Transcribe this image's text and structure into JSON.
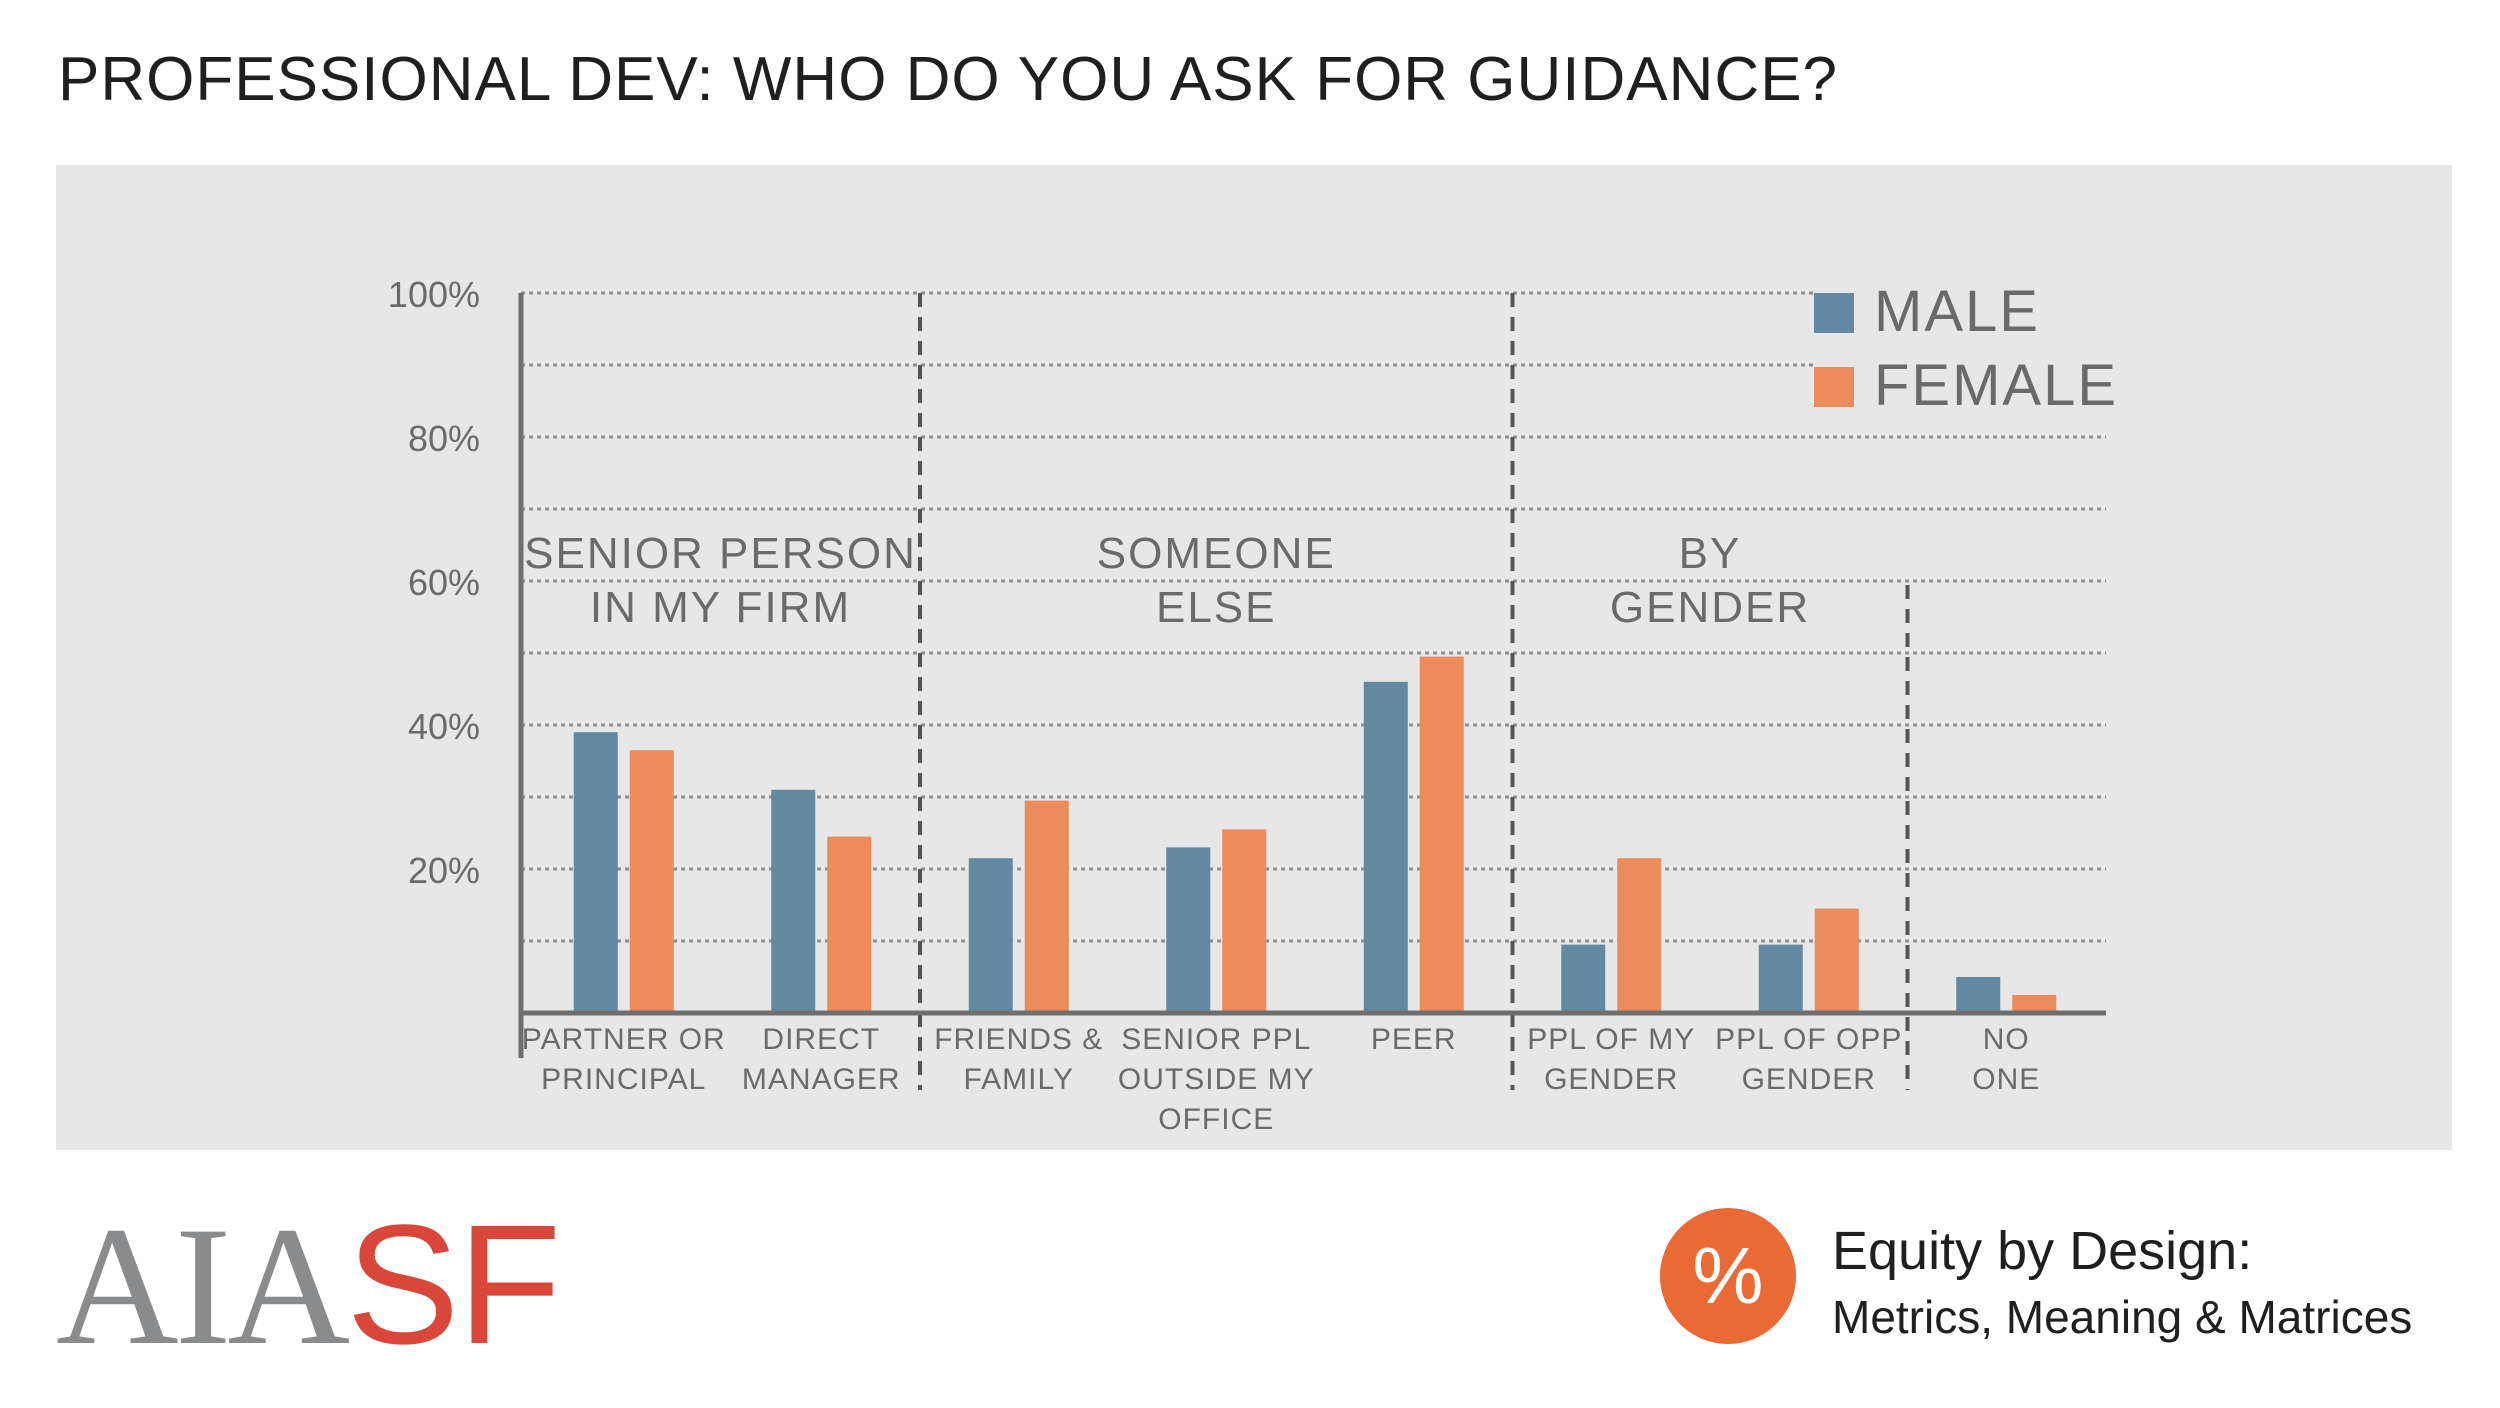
{
  "title": "PROFESSIONAL DEV: WHO DO YOU ASK FOR GUIDANCE?",
  "colors": {
    "male": "#6389a2",
    "female": "#ec8b5c",
    "panel": "#e6e7e6",
    "axis": "#6e6e6e",
    "text": "#6a6a6a"
  },
  "chart_data": {
    "type": "bar",
    "ylim": [
      0,
      100
    ],
    "y_ticks": [
      "100%",
      "80%",
      "60%",
      "40%",
      "20%"
    ],
    "y_tick_values": [
      100,
      80,
      60,
      40,
      20
    ],
    "grid": "dotted",
    "legend_position": "top-right",
    "categories": [
      [
        "PARTNER OR",
        "PRINCIPAL"
      ],
      [
        "DIRECT",
        "MANAGER"
      ],
      [
        "FRIENDS &",
        "FAMILY"
      ],
      [
        "SENIOR PPL",
        "OUTSIDE MY",
        "OFFICE"
      ],
      [
        "PEER"
      ],
      [
        "PPL OF MY",
        "GENDER"
      ],
      [
        "PPL OF OPP",
        "GENDER"
      ],
      [
        "NO",
        "ONE"
      ]
    ],
    "series": [
      {
        "name": "MALE",
        "values": [
          39,
          31,
          21.5,
          23,
          46,
          9.5,
          9.5,
          5
        ]
      },
      {
        "name": "FEMALE",
        "values": [
          36.5,
          24.5,
          29.5,
          25.5,
          49.5,
          21.5,
          14.5,
          2.5
        ]
      }
    ],
    "groups": [
      {
        "label": [
          "SENIOR PERSON",
          "IN MY FIRM"
        ]
      },
      {
        "label": [
          "SOMEONE",
          "ELSE"
        ]
      },
      {
        "label": [
          "BY",
          "GENDER"
        ]
      }
    ]
  },
  "footer": {
    "logo_aia": "AIA",
    "logo_sf": "SF",
    "badge_symbol": "%",
    "ebd_title": "Equity by Design:",
    "ebd_subtitle": "Metrics, Meaning & Matrices"
  }
}
